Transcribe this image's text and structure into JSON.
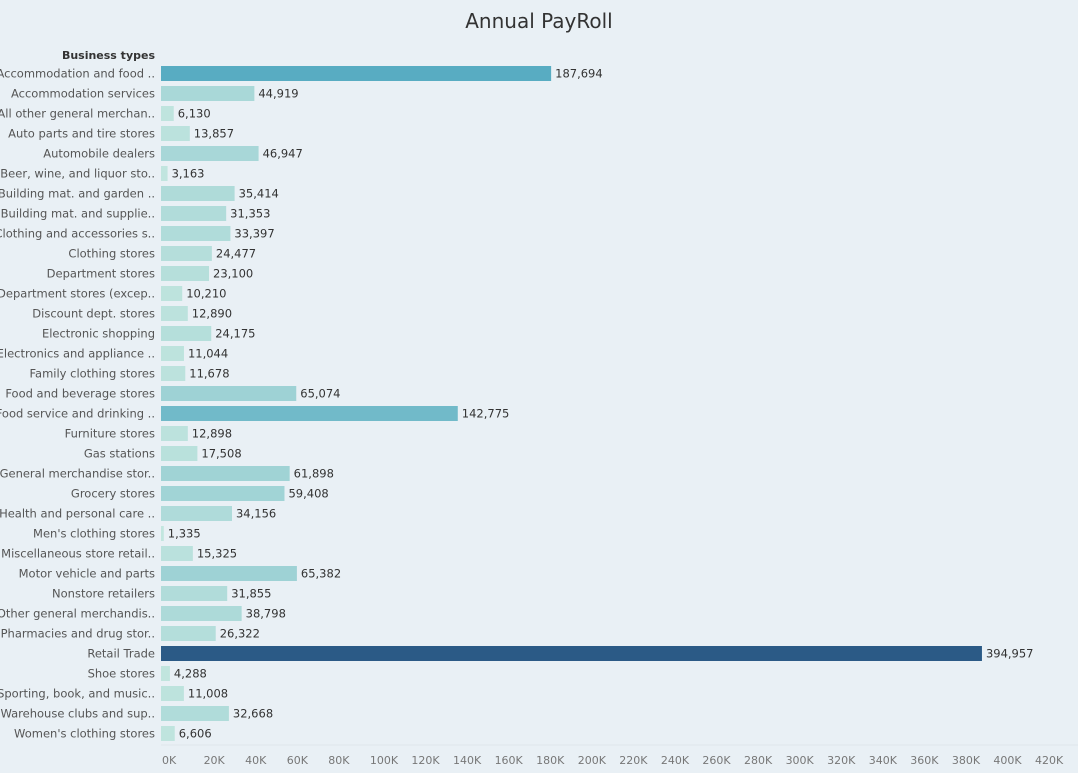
{
  "chart_data": {
    "type": "bar",
    "orientation": "horizontal",
    "title": "Annual PayRoll",
    "category_header": "Business types",
    "xlim": [
      0,
      420000
    ],
    "x_ticks": [
      "0K",
      "20K",
      "40K",
      "60K",
      "80K",
      "100K",
      "120K",
      "140K",
      "160K",
      "180K",
      "200K",
      "220K",
      "240K",
      "260K",
      "280K",
      "300K",
      "320K",
      "340K",
      "360K",
      "380K",
      "400K",
      "420K"
    ],
    "grid": false,
    "color_scale": {
      "low": "#c3e6df",
      "mid": "#52a9c0",
      "high": "#2b5a86"
    },
    "categories": [
      "Accommodation and food ..",
      "Accommodation services",
      "All other general merchan..",
      "Auto parts and tire stores",
      "Automobile dealers",
      "Beer, wine, and liquor sto..",
      "Building mat. and garden ..",
      "Building mat. and supplie..",
      "Clothing and accessories s..",
      "Clothing stores",
      "Department stores",
      "Department stores (excep..",
      "Discount dept. stores",
      "Electronic shopping",
      "Electronics and appliance ..",
      "Family clothing stores",
      "Food and beverage stores",
      "Food service and drinking ..",
      "Furniture stores",
      "Gas stations",
      "General merchandise stor..",
      "Grocery stores",
      "Health and personal care ..",
      "Men's clothing stores",
      "Miscellaneous store retail..",
      "Motor vehicle and parts",
      "Nonstore retailers",
      "Other general merchandis..",
      "Pharmacies and drug stor..",
      "Retail Trade",
      "Shoe stores",
      "Sporting, book, and  music..",
      "Warehouse clubs and sup..",
      "Women's clothing stores"
    ],
    "values": [
      187694,
      44919,
      6130,
      13857,
      46947,
      3163,
      35414,
      31353,
      33397,
      24477,
      23100,
      10210,
      12890,
      24175,
      11044,
      11678,
      65074,
      142775,
      12898,
      17508,
      61898,
      59408,
      34156,
      1335,
      15325,
      65382,
      31855,
      38798,
      26322,
      394957,
      4288,
      11008,
      32668,
      6606
    ],
    "labels": [
      "187,694",
      "44,919",
      "6,130",
      "13,857",
      "46,947",
      "3,163",
      "35,414",
      "31,353",
      "33,397",
      "24,477",
      "23,100",
      "10,210",
      "12,890",
      "24,175",
      "11,044",
      "11,678",
      "65,074",
      "142,775",
      "12,898",
      "17,508",
      "61,898",
      "59,408",
      "34,156",
      "1,335",
      "15,325",
      "65,382",
      "31,855",
      "38,798",
      "26,322",
      "394,957",
      "4,288",
      "11,008",
      "32,668",
      "6,606"
    ]
  }
}
